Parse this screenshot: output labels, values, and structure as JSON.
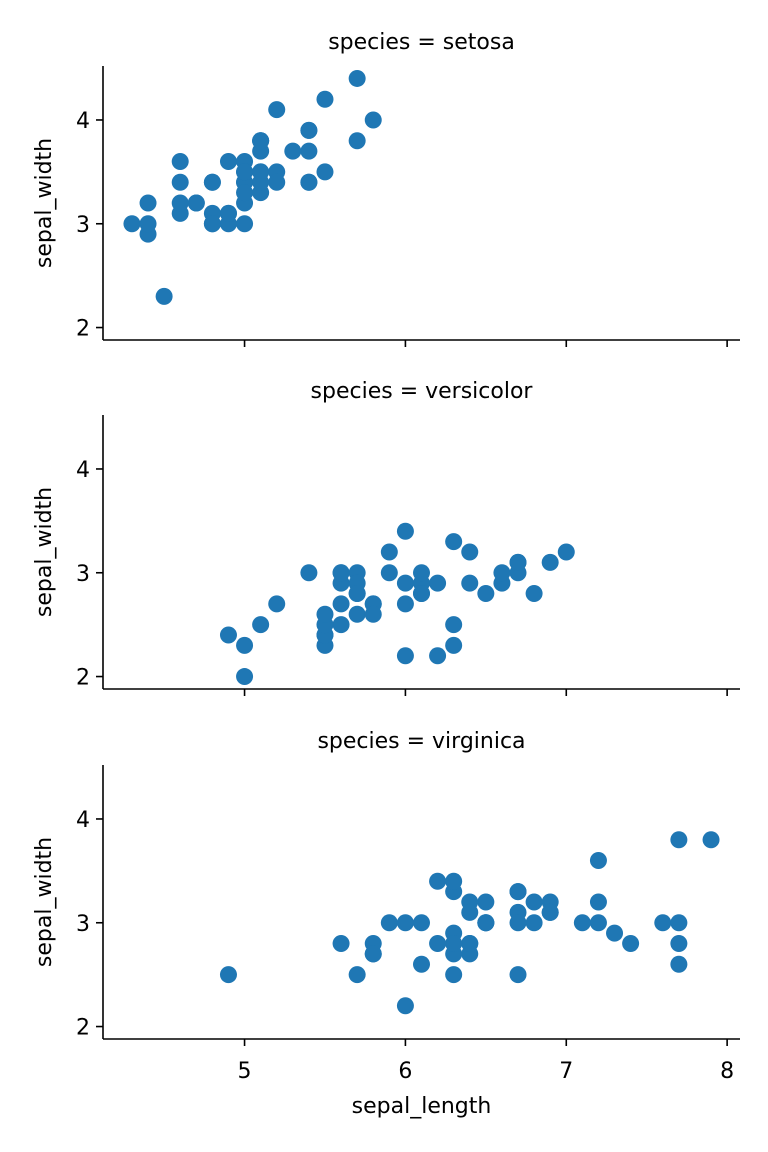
{
  "chart_data": {
    "type": "scatter",
    "layout": "facet-grid",
    "xlabel": "sepal_length",
    "ylabel": "sepal_width",
    "xlim": [
      4.12,
      8.08
    ],
    "ylim": [
      1.88,
      4.52
    ],
    "xticks": [
      5,
      6,
      7,
      8
    ],
    "yticks": [
      2,
      3,
      4
    ],
    "xtick_labels": [
      "5",
      "6",
      "7",
      "8"
    ],
    "ytick_labels": [
      "2",
      "3",
      "4"
    ],
    "color": "#1f77b4",
    "grid": false,
    "panels": [
      {
        "title": "species = setosa",
        "points": [
          [
            5.1,
            3.5
          ],
          [
            4.9,
            3.0
          ],
          [
            4.7,
            3.2
          ],
          [
            4.6,
            3.1
          ],
          [
            5.0,
            3.6
          ],
          [
            5.4,
            3.9
          ],
          [
            4.6,
            3.4
          ],
          [
            5.0,
            3.4
          ],
          [
            4.4,
            2.9
          ],
          [
            4.9,
            3.1
          ],
          [
            5.4,
            3.7
          ],
          [
            4.8,
            3.4
          ],
          [
            4.8,
            3.0
          ],
          [
            4.3,
            3.0
          ],
          [
            5.8,
            4.0
          ],
          [
            5.7,
            4.4
          ],
          [
            5.4,
            3.9
          ],
          [
            5.1,
            3.5
          ],
          [
            5.7,
            3.8
          ],
          [
            5.1,
            3.8
          ],
          [
            5.4,
            3.4
          ],
          [
            5.1,
            3.7
          ],
          [
            4.6,
            3.6
          ],
          [
            5.1,
            3.3
          ],
          [
            4.8,
            3.4
          ],
          [
            5.0,
            3.0
          ],
          [
            5.0,
            3.4
          ],
          [
            5.2,
            3.5
          ],
          [
            5.2,
            3.4
          ],
          [
            4.7,
            3.2
          ],
          [
            4.8,
            3.1
          ],
          [
            5.4,
            3.4
          ],
          [
            5.2,
            4.1
          ],
          [
            5.5,
            4.2
          ],
          [
            4.9,
            3.1
          ],
          [
            5.0,
            3.2
          ],
          [
            5.5,
            3.5
          ],
          [
            4.9,
            3.6
          ],
          [
            4.4,
            3.0
          ],
          [
            5.1,
            3.4
          ],
          [
            5.0,
            3.5
          ],
          [
            4.5,
            2.3
          ],
          [
            4.4,
            3.2
          ],
          [
            5.0,
            3.5
          ],
          [
            5.1,
            3.8
          ],
          [
            4.8,
            3.0
          ],
          [
            5.1,
            3.8
          ],
          [
            4.6,
            3.2
          ],
          [
            5.3,
            3.7
          ],
          [
            5.0,
            3.3
          ]
        ]
      },
      {
        "title": "species = versicolor",
        "points": [
          [
            7.0,
            3.2
          ],
          [
            6.4,
            3.2
          ],
          [
            6.9,
            3.1
          ],
          [
            5.5,
            2.3
          ],
          [
            6.5,
            2.8
          ],
          [
            5.7,
            2.8
          ],
          [
            6.3,
            3.3
          ],
          [
            4.9,
            2.4
          ],
          [
            6.6,
            2.9
          ],
          [
            5.2,
            2.7
          ],
          [
            5.0,
            2.0
          ],
          [
            5.9,
            3.0
          ],
          [
            6.0,
            2.2
          ],
          [
            6.1,
            2.9
          ],
          [
            5.6,
            2.9
          ],
          [
            6.7,
            3.1
          ],
          [
            5.6,
            3.0
          ],
          [
            5.8,
            2.7
          ],
          [
            6.2,
            2.2
          ],
          [
            5.6,
            2.5
          ],
          [
            5.9,
            3.2
          ],
          [
            6.1,
            2.8
          ],
          [
            6.3,
            2.5
          ],
          [
            6.1,
            2.8
          ],
          [
            6.4,
            2.9
          ],
          [
            6.6,
            3.0
          ],
          [
            6.8,
            2.8
          ],
          [
            6.7,
            3.0
          ],
          [
            6.0,
            2.9
          ],
          [
            5.7,
            2.6
          ],
          [
            5.5,
            2.4
          ],
          [
            5.5,
            2.4
          ],
          [
            5.8,
            2.7
          ],
          [
            6.0,
            2.7
          ],
          [
            5.4,
            3.0
          ],
          [
            6.0,
            3.4
          ],
          [
            6.7,
            3.1
          ],
          [
            6.3,
            2.3
          ],
          [
            5.6,
            3.0
          ],
          [
            5.5,
            2.5
          ],
          [
            5.5,
            2.6
          ],
          [
            6.1,
            3.0
          ],
          [
            5.8,
            2.6
          ],
          [
            5.0,
            2.3
          ],
          [
            5.6,
            2.7
          ],
          [
            5.7,
            3.0
          ],
          [
            5.7,
            2.9
          ],
          [
            6.2,
            2.9
          ],
          [
            5.1,
            2.5
          ],
          [
            5.7,
            2.8
          ]
        ]
      },
      {
        "title": "species = virginica",
        "points": [
          [
            6.3,
            3.3
          ],
          [
            5.8,
            2.7
          ],
          [
            7.1,
            3.0
          ],
          [
            6.3,
            2.9
          ],
          [
            6.5,
            3.0
          ],
          [
            7.6,
            3.0
          ],
          [
            4.9,
            2.5
          ],
          [
            7.3,
            2.9
          ],
          [
            6.7,
            2.5
          ],
          [
            7.2,
            3.6
          ],
          [
            6.5,
            3.2
          ],
          [
            6.4,
            2.7
          ],
          [
            6.8,
            3.0
          ],
          [
            5.7,
            2.5
          ],
          [
            5.8,
            2.8
          ],
          [
            6.4,
            3.2
          ],
          [
            6.5,
            3.0
          ],
          [
            7.7,
            3.8
          ],
          [
            7.7,
            2.6
          ],
          [
            6.0,
            2.2
          ],
          [
            6.9,
            3.2
          ],
          [
            5.6,
            2.8
          ],
          [
            7.7,
            2.8
          ],
          [
            6.3,
            2.7
          ],
          [
            6.7,
            3.3
          ],
          [
            7.2,
            3.2
          ],
          [
            6.2,
            2.8
          ],
          [
            6.1,
            3.0
          ],
          [
            6.4,
            2.8
          ],
          [
            7.2,
            3.0
          ],
          [
            7.4,
            2.8
          ],
          [
            7.9,
            3.8
          ],
          [
            6.4,
            2.8
          ],
          [
            6.3,
            2.8
          ],
          [
            6.1,
            2.6
          ],
          [
            7.7,
            3.0
          ],
          [
            6.3,
            3.4
          ],
          [
            6.4,
            3.1
          ],
          [
            6.0,
            3.0
          ],
          [
            6.9,
            3.1
          ],
          [
            6.7,
            3.1
          ],
          [
            6.9,
            3.1
          ],
          [
            5.8,
            2.7
          ],
          [
            6.8,
            3.2
          ],
          [
            6.7,
            3.3
          ],
          [
            6.7,
            3.0
          ],
          [
            6.3,
            2.5
          ],
          [
            6.5,
            3.0
          ],
          [
            6.2,
            3.4
          ],
          [
            5.9,
            3.0
          ]
        ]
      }
    ]
  }
}
